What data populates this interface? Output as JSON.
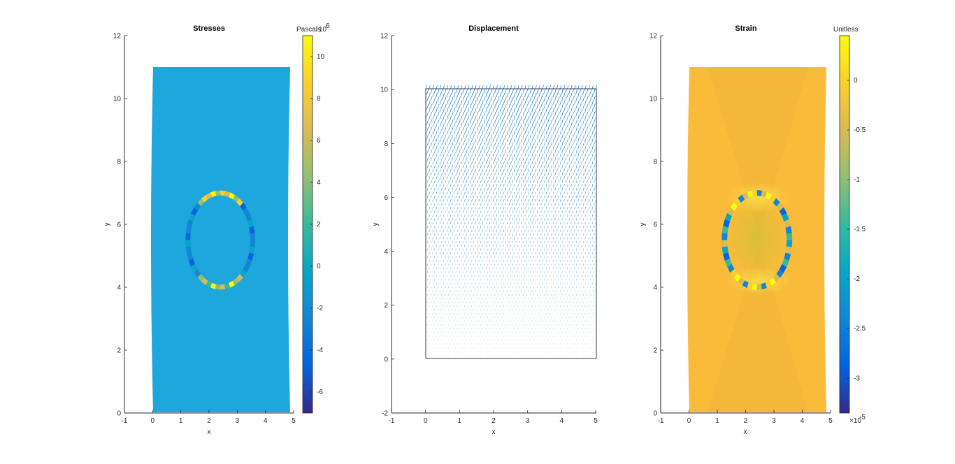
{
  "chart_data": [
    {
      "type": "heatmap",
      "title": "Stresses",
      "xlabel": "x",
      "ylabel": "y",
      "xlim": [
        -1,
        5
      ],
      "ylim": [
        0,
        12
      ],
      "xticks": [
        -1,
        0,
        1,
        2,
        3,
        4,
        5
      ],
      "yticks": [
        0,
        2,
        4,
        6,
        8,
        10,
        12
      ],
      "domain": {
        "x": [
          0,
          4.85
        ],
        "y": [
          0,
          11
        ]
      },
      "hole": {
        "cx": 2.4,
        "cy": 5.5,
        "rx": 1.15,
        "ry": 1.5
      },
      "background_value": 0,
      "colorbar": {
        "label": "Pascals",
        "exponent": "10",
        "exponent_power": "6",
        "range": [
          -7,
          11
        ],
        "ticks": [
          "-6",
          "-4",
          "-2",
          "0",
          "2",
          "4",
          "6",
          "8",
          "10"
        ],
        "tick_values": [
          -6,
          -4,
          -2,
          0,
          2,
          4,
          6,
          8,
          10
        ]
      }
    },
    {
      "type": "quiver",
      "title": "Displacement",
      "xlabel": "x",
      "ylabel": "y",
      "xlim": [
        -1,
        5
      ],
      "ylim": [
        -2,
        12
      ],
      "xticks": [
        -1,
        0,
        1,
        2,
        3,
        4,
        5
      ],
      "yticks": [
        -2,
        0,
        2,
        4,
        6,
        8,
        10,
        12
      ],
      "domain": {
        "x": [
          0,
          5
        ],
        "y": [
          0,
          10
        ]
      }
    },
    {
      "type": "heatmap",
      "title": "Strain",
      "xlabel": "x",
      "ylabel": "y",
      "xlim": [
        -1,
        5
      ],
      "ylim": [
        0,
        12
      ],
      "xticks": [
        -1,
        0,
        1,
        2,
        3,
        4,
        5
      ],
      "yticks": [
        0,
        2,
        4,
        6,
        8,
        10,
        12
      ],
      "domain": {
        "x": [
          0,
          4.85
        ],
        "y": [
          0,
          11
        ]
      },
      "hole": {
        "cx": 2.4,
        "cy": 5.5,
        "rx": 1.15,
        "ry": 1.5
      },
      "background_value": 0.1,
      "colorbar": {
        "label": "Unitless",
        "exponent": "×10",
        "exponent_power": "-5",
        "range": [
          -3.35,
          0.45
        ],
        "ticks": [
          "-3",
          "-2.5",
          "-2",
          "-1.5",
          "-1",
          "-0.5",
          "0"
        ],
        "tick_values": [
          -3,
          -2.5,
          -2,
          -1.5,
          -1,
          -0.5,
          0
        ]
      }
    }
  ],
  "colors": {
    "parula": [
      "#352a87",
      "#0363e1",
      "#1485d4",
      "#06a7c6",
      "#38b99e",
      "#92bf73",
      "#d9ba56",
      "#fcce2e",
      "#f9fb0e"
    ],
    "quiver": "#0072bd",
    "axes": "#262626"
  }
}
